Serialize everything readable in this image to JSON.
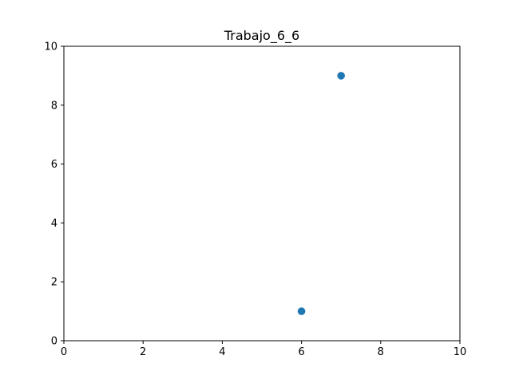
{
  "chart_data": {
    "type": "scatter",
    "title": "Trabajo_6_6",
    "xlabel": "",
    "ylabel": "",
    "xlim": [
      0,
      10
    ],
    "ylim": [
      0,
      10
    ],
    "xticks": [
      0,
      2,
      4,
      6,
      8,
      10
    ],
    "yticks": [
      0,
      2,
      4,
      6,
      8,
      10
    ],
    "grid": false,
    "series": [
      {
        "color": "#1f77b4",
        "points": [
          {
            "x": 6,
            "y": 1
          },
          {
            "x": 7,
            "y": 9
          }
        ]
      }
    ]
  }
}
